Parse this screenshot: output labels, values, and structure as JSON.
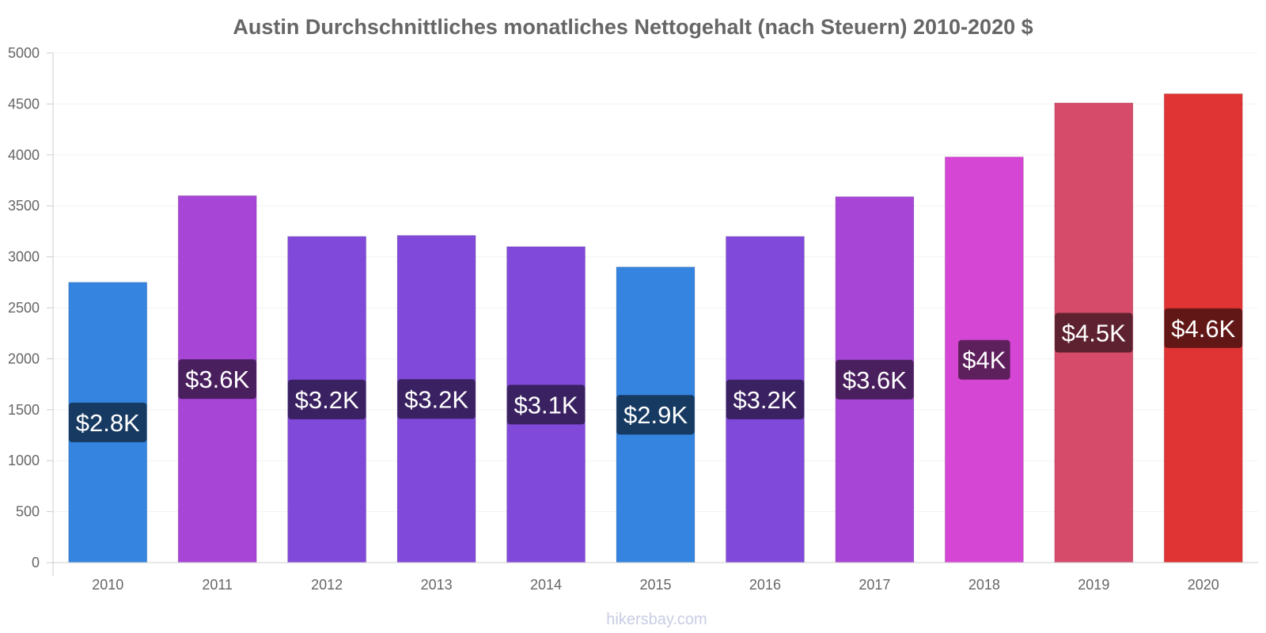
{
  "chart_data": {
    "type": "bar",
    "title": "Austin Durchschnittliches monatliches Nettogehalt (nach Steuern) 2010-2020 $",
    "xlabel": "",
    "ylabel": "",
    "ylim": [
      0,
      5000
    ],
    "yticks": [
      "0",
      "500",
      "1000",
      "1500",
      "2000",
      "2500",
      "3000",
      "3500",
      "4000",
      "4500",
      "5000"
    ],
    "categories": [
      "2010",
      "2011",
      "2012",
      "2013",
      "2014",
      "2015",
      "2016",
      "2017",
      "2018",
      "2019",
      "2020"
    ],
    "values": [
      2750,
      3600,
      3200,
      3210,
      3100,
      2900,
      3200,
      3590,
      3980,
      4510,
      4600
    ],
    "labels": [
      "$2.8K",
      "$3.6K",
      "$3.2K",
      "$3.2K",
      "$3.1K",
      "$2.9K",
      "$3.2K",
      "$3.6K",
      "$4K",
      "$4.5K",
      "$4.6K"
    ],
    "bar_colors": [
      "#3584e0",
      "#a745d6",
      "#8149d9",
      "#8149d9",
      "#8149d9",
      "#3584e0",
      "#8149d9",
      "#a745d6",
      "#d446d3",
      "#d64a6a",
      "#e03434"
    ],
    "label_bg_colors": [
      "#173a62",
      "#4a1f5e",
      "#3a2161",
      "#3a2161",
      "#3a2161",
      "#173a62",
      "#3a2161",
      "#4a1f5e",
      "#5e1f5d",
      "#5e2130",
      "#621717"
    ],
    "grid": true,
    "legend": "none"
  },
  "watermark": "hikersbay.com"
}
